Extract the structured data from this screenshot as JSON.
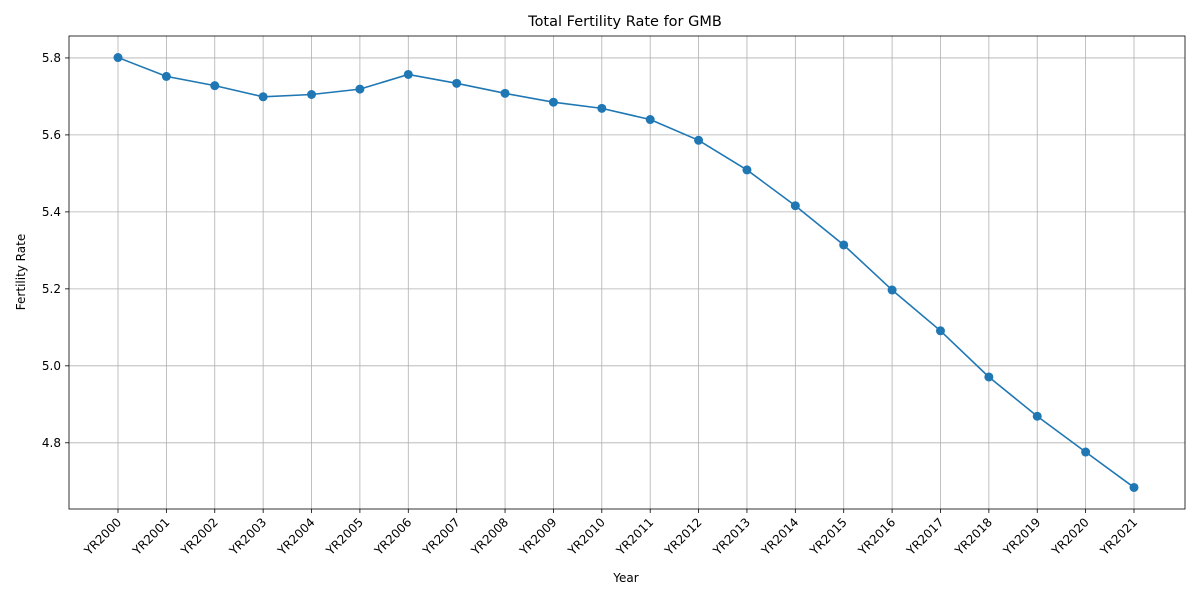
{
  "chart_data": {
    "type": "line",
    "title": "Total Fertility Rate for GMB",
    "xlabel": "Year",
    "ylabel": "Fertility Rate",
    "categories": [
      "YR2000",
      "YR2001",
      "YR2002",
      "YR2003",
      "YR2004",
      "YR2005",
      "YR2006",
      "YR2007",
      "YR2008",
      "YR2009",
      "YR2010",
      "YR2011",
      "YR2012",
      "YR2013",
      "YR2014",
      "YR2015",
      "YR2016",
      "YR2017",
      "YR2018",
      "YR2019",
      "YR2020",
      "YR2021"
    ],
    "series": [
      {
        "values": [
          5.801,
          5.752,
          5.728,
          5.699,
          5.705,
          5.719,
          5.757,
          5.734,
          5.708,
          5.685,
          5.669,
          5.64,
          5.586,
          5.509,
          5.416,
          5.314,
          5.197,
          5.091,
          4.971,
          4.869,
          4.776,
          4.684
        ],
        "color": "#1f77b4",
        "marker": "circle"
      }
    ],
    "yticks": [
      4.8,
      5.0,
      5.2,
      5.4,
      5.6,
      5.8
    ],
    "ylim": [
      4.628,
      5.857
    ],
    "grid": true,
    "xtick_rotation": 45
  }
}
